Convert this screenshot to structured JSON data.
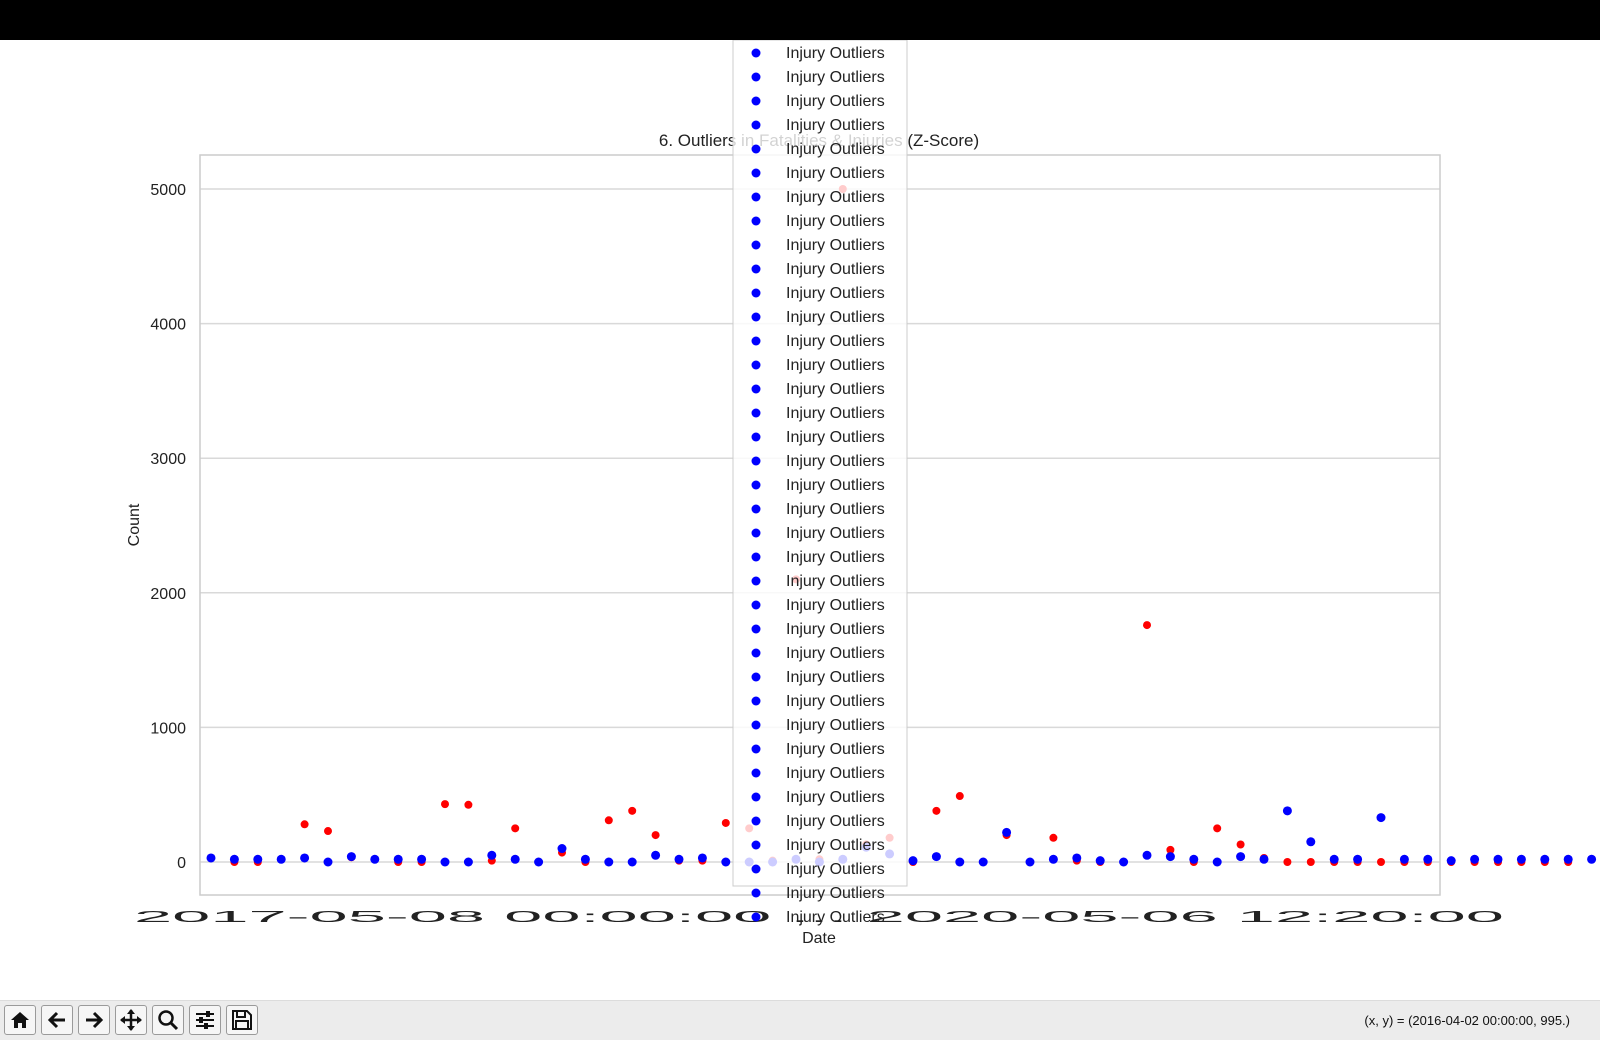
{
  "window": {
    "title_bar_color": "#000000"
  },
  "chart_data": {
    "type": "scatter",
    "title": "6. Outliers in Fatalities & Injuries (Z-Score)",
    "xlabel": "Date",
    "ylabel": "Count",
    "ylim": [
      -500,
      5250
    ],
    "yticks": [
      0,
      1000,
      2000,
      3000,
      4000,
      5000
    ],
    "xtick_labels_overlapping": "2017-05-08 00:00:00 ... 2020-05-06 12:20:00",
    "grid": true,
    "legend_placement": "top-center",
    "colors": {
      "fatality": "#ff0000",
      "injury": "#0000ff"
    },
    "legend": {
      "entries": [
        "Injury Outliers",
        "Injury Outliers",
        "Injury Outliers",
        "Injury Outliers",
        "Injury Outliers",
        "Injury Outliers",
        "Injury Outliers",
        "Injury Outliers",
        "Injury Outliers",
        "Injury Outliers",
        "Injury Outliers",
        "Injury Outliers",
        "Injury Outliers",
        "Injury Outliers",
        "Injury Outliers",
        "Injury Outliers",
        "Injury Outliers",
        "Injury Outliers",
        "Injury Outliers",
        "Injury Outliers",
        "Injury Outliers",
        "Injury Outliers",
        "Injury Outliers",
        "Injury Outliers",
        "Injury Outliers",
        "Injury Outliers",
        "Injury Outliers",
        "Injury Outliers",
        "Injury Outliers",
        "Injury Outliers",
        "Injury Outliers",
        "Injury Outliers",
        "Injury Outliers",
        "Injury Outliers",
        "Injury Outliers",
        "Injury Outliers",
        "Injury Outliers"
      ]
    },
    "series": [
      {
        "color": "red",
        "x": [
          2,
          3,
          5,
          6,
          7,
          9,
          10,
          11,
          12,
          13,
          14,
          16,
          17,
          18,
          19,
          20,
          21,
          22,
          23,
          24,
          25,
          26,
          27,
          28,
          29,
          30,
          31,
          32,
          33,
          34,
          35,
          36,
          37,
          38,
          39,
          40,
          41,
          42,
          43,
          44,
          45,
          46,
          47,
          48,
          49,
          50,
          51,
          52,
          53,
          54,
          55,
          56,
          57,
          58,
          59
        ],
        "y": [
          0,
          0,
          280,
          230,
          35,
          0,
          0,
          430,
          425,
          10,
          250,
          70,
          0,
          310,
          380,
          200,
          10,
          10,
          290,
          250,
          10,
          2100,
          20,
          5000,
          130,
          180,
          0,
          380,
          490,
          0,
          200,
          0,
          180,
          10,
          0,
          0,
          1760,
          90,
          0,
          250,
          130,
          30,
          0,
          0,
          0,
          0,
          0,
          0,
          0,
          0,
          0,
          0,
          0,
          0,
          0
        ]
      },
      {
        "color": "blue",
        "x": [
          1,
          2,
          3,
          4,
          5,
          6,
          7,
          8,
          9,
          10,
          11,
          12,
          13,
          14,
          15,
          16,
          17,
          18,
          19,
          20,
          21,
          22,
          23,
          24,
          25,
          26,
          27,
          28,
          29,
          30,
          31,
          32,
          33,
          34,
          35,
          36,
          37,
          38,
          39,
          40,
          41,
          42,
          43,
          44,
          45,
          46,
          47,
          48,
          49,
          50,
          51,
          52,
          53,
          54,
          55,
          56,
          57,
          58,
          59,
          60,
          61
        ],
        "y": [
          30,
          20,
          20,
          20,
          30,
          0,
          40,
          20,
          20,
          20,
          0,
          0,
          50,
          20,
          0,
          100,
          20,
          0,
          0,
          50,
          20,
          30,
          0,
          0,
          0,
          20,
          0,
          20,
          110,
          60,
          10,
          40,
          0,
          0,
          220,
          0,
          20,
          30,
          10,
          0,
          50,
          40,
          20,
          0,
          40,
          20,
          380,
          150,
          20,
          20,
          330,
          20,
          20,
          10,
          20,
          20,
          20,
          20,
          20,
          20,
          20
        ]
      }
    ]
  },
  "toolbar": {
    "tools": [
      "home-icon",
      "back-arrow-icon",
      "forward-arrow-icon",
      "pan-icon",
      "zoom-icon",
      "configure-subplots-icon",
      "save-icon"
    ],
    "coords": "(x, y) = (2016-04-02 00:00:00, 995.)"
  }
}
